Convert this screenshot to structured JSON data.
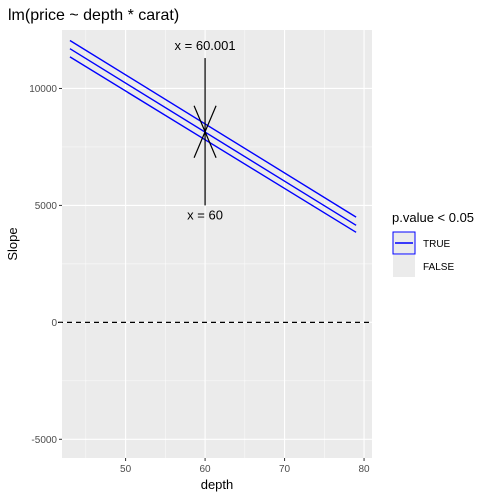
{
  "chart_data": {
    "type": "line",
    "title": "lm(price ~ depth * carat)",
    "xlabel": "depth",
    "ylabel": "Slope",
    "xlim": [
      42,
      81
    ],
    "ylim": [
      -5800,
      12500
    ],
    "x_ticks": [
      50,
      60,
      70,
      80
    ],
    "y_ticks": [
      -5000,
      0,
      5000,
      10000
    ],
    "x_tick_labels": [
      "50",
      "60",
      "70",
      "80"
    ],
    "y_tick_labels": [
      "-5000",
      "0",
      "5000",
      "10000"
    ],
    "grid": true,
    "legend_position": "right",
    "series": [
      {
        "x": [
          43,
          79
        ],
        "y": [
          12050,
          4500
        ]
      },
      {
        "x": [
          43,
          79
        ],
        "y": [
          11700,
          4150
        ]
      },
      {
        "x": [
          43,
          79
        ],
        "y": [
          11350,
          3850
        ]
      }
    ],
    "reference_line": {
      "y": 0,
      "style": "dashed"
    },
    "annotations": [
      {
        "text": "x = 60.001",
        "x": 60,
        "y": 11650,
        "arrow_to": [
          60,
          8150
        ],
        "arrow_from": [
          60,
          11300
        ]
      },
      {
        "text": "x = 60",
        "x": 60,
        "y": 4400,
        "arrow_to": [
          60,
          8150
        ],
        "arrow_from": [
          60,
          5000
        ]
      }
    ],
    "crossing_point": {
      "x": 60,
      "y": 8150
    },
    "legend": {
      "title": "p.value < 0.05",
      "entries": [
        {
          "label": "TRUE",
          "color": "#0000ff"
        },
        {
          "label": "FALSE",
          "color": "#ebebeb"
        }
      ]
    },
    "colors": {
      "panel_background": "#ebebeb",
      "grid_major": "#ffffff",
      "line": "#0000ff",
      "reference": "#000000"
    }
  }
}
